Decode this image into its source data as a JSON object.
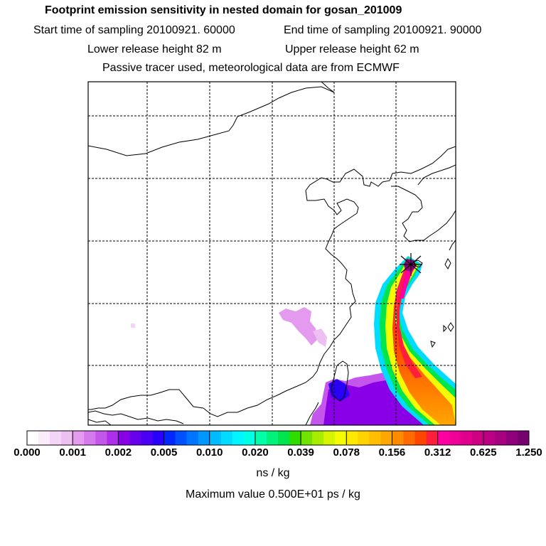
{
  "header": {
    "title": "Footprint emission sensitivity in nested domain for gosan_201009",
    "start_label": "Start time of sampling 20100921. 60000",
    "end_label": "End time of sampling 20100921. 90000",
    "lower_label": "Lower release height   82 m",
    "upper_label": "Upper release height   62 m",
    "tracer_label": "Passive tracer used, meteorological data are from ECMWF"
  },
  "map": {
    "receptor_marker": "star-icon",
    "colors": {
      "coast": "#000000",
      "grid": "#000000"
    }
  },
  "colorbar": {
    "labels": [
      "0.000",
      "0.001",
      "0.002",
      "0.005",
      "0.010",
      "0.020",
      "0.039",
      "0.078",
      "0.156",
      "0.312",
      "0.625",
      "1.250"
    ],
    "colors": [
      [
        "#ffffff",
        "#fbebfb",
        "#f5d5f7",
        "#eec0f2"
      ],
      [
        "#e39aef",
        "#d779ee",
        "#c556ec",
        "#ad2eea"
      ],
      [
        "#8a00e6",
        "#6800ee",
        "#4a00f4",
        "#2a00fa"
      ],
      [
        "#0028ff",
        "#0050ff",
        "#0075ff",
        "#0098ff"
      ],
      [
        "#00bcff",
        "#00dcff",
        "#00f5ff",
        "#00ffe6"
      ],
      [
        "#00ffa8",
        "#00f27a",
        "#00e44e",
        "#2edc00"
      ],
      [
        "#70e400",
        "#a8ec00",
        "#d6f400",
        "#f5fb00"
      ],
      [
        "#ffe900",
        "#ffd300",
        "#ffbd00",
        "#ffa600"
      ],
      [
        "#ff8b00",
        "#ff6a00",
        "#ff4600",
        "#ff1e3c"
      ],
      [
        "#ff00a0",
        "#f00096",
        "#e0008c",
        "#cf0084"
      ],
      [
        "#bb0084",
        "#a60080",
        "#8f007a",
        "#760070"
      ]
    ],
    "units": "ns / kg",
    "max_value_text": "Maximum value  0.500E+01 ps / kg"
  }
}
